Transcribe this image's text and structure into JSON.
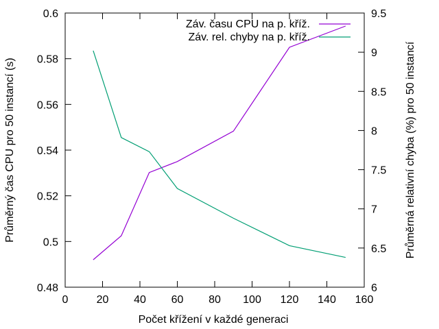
{
  "chart_data": {
    "type": "line",
    "xlabel": "Počet křížení v každé generaci",
    "ylabel_left": "Průměrný čas CPU pro 50 instancí (s)",
    "ylabel_right": "Průměrná relativní chyba (%) pro 50 instancí",
    "xlim": [
      0,
      160
    ],
    "ylim_left": [
      0.48,
      0.6
    ],
    "ylim_right": [
      6,
      9.5
    ],
    "xticks": [
      "0",
      "20",
      "40",
      "60",
      "80",
      "100",
      "120",
      "140",
      "160"
    ],
    "yticks_left": [
      "0.48",
      "0.5",
      "0.52",
      "0.54",
      "0.56",
      "0.58",
      "0.6"
    ],
    "yticks_right": [
      "6",
      "6.5",
      "7",
      "7.5",
      "8",
      "8.5",
      "9",
      "9.5"
    ],
    "grid": false,
    "legend_position": "top-right",
    "series": [
      {
        "name": "Záv. času CPU na p. kříž.",
        "axis": "left",
        "color": "#9400d3",
        "x": [
          15,
          30,
          45,
          60,
          90,
          120,
          150
        ],
        "y": [
          0.492,
          0.5025,
          0.5302,
          0.535,
          0.5483,
          0.585,
          0.5943
        ]
      },
      {
        "name": "Záv. rel. chyby na p. kříž.",
        "axis": "right",
        "color": "#009e73",
        "x": [
          15,
          30,
          45,
          60,
          90,
          120,
          150
        ],
        "y": [
          9.02,
          7.91,
          7.73,
          7.26,
          6.88,
          6.53,
          6.38
        ]
      }
    ]
  }
}
